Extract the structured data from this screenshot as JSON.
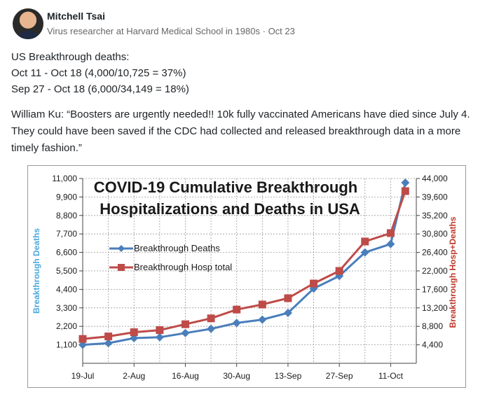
{
  "post": {
    "author_name": "Mitchell Tsai",
    "author_headline": "Virus researcher at Harvard Medical School in 1980s",
    "separator": "·",
    "date": "Oct 23",
    "lines": [
      "US Breakthrough deaths:",
      "Oct 11 - Oct 18 (4,000/10,725 = 37%)",
      "Sep 27 - Oct 18 (6,000/34,149 = 18%)"
    ],
    "quote": "William Ku: “Boosters are urgently needed!! 10k fully vaccinated Americans have died since July 4. They could have been saved if the CDC had collected and released breakthrough data in a more timely fashion.”"
  },
  "chart_data": {
    "type": "line",
    "title_line1": "COVID-19 Cumulative Breakthrough",
    "title_line2": "Hospitalizations and Deaths in USA",
    "xlabel": "",
    "ylabel": "Breakthrough Deaths",
    "y2label": "Breakthrough Hosp+Deaths",
    "x_tick_labels": [
      "19-Jul",
      "2-Aug",
      "16-Aug",
      "30-Aug",
      "13-Sep",
      "27-Sep",
      "11-Oct"
    ],
    "y_ticks": [
      "1,100",
      "2,200",
      "3,300",
      "4,400",
      "5,500",
      "6,600",
      "7,700",
      "8,800",
      "9,900",
      "11,000"
    ],
    "y2_ticks": [
      "4,400",
      "8,800",
      "13,200",
      "17,600",
      "22,000",
      "26,400",
      "30,800",
      "35,200",
      "39,600",
      "44,000"
    ],
    "ylim": [
      0,
      11000
    ],
    "y2lim": [
      0,
      44000
    ],
    "x_days_from_jul19": [
      0,
      7,
      14,
      21,
      28,
      35,
      42,
      49,
      56,
      63,
      70,
      77,
      84,
      88
    ],
    "x_dates": [
      "19-Jul",
      "26-Jul",
      "2-Aug",
      "9-Aug",
      "16-Aug",
      "23-Aug",
      "30-Aug",
      "6-Sep",
      "13-Sep",
      "20-Sep",
      "27-Sep",
      "4-Oct",
      "11-Oct",
      "15-Oct"
    ],
    "legend_placement": "left-middle",
    "grid": true,
    "series": [
      {
        "name": "Breakthrough Deaths",
        "axis": "left",
        "color": "#4a7ebb",
        "marker": "diamond",
        "values": [
          1100,
          1200,
          1500,
          1550,
          1800,
          2050,
          2400,
          2600,
          3000,
          4450,
          5200,
          6600,
          7100,
          10750
        ]
      },
      {
        "name": "Breakthrough Hosp total",
        "axis": "right",
        "color": "#be4b48",
        "marker": "square",
        "values": [
          5800,
          6400,
          7400,
          7900,
          9300,
          10700,
          12800,
          14000,
          15500,
          19000,
          22000,
          29000,
          31000,
          41000
        ]
      }
    ]
  }
}
